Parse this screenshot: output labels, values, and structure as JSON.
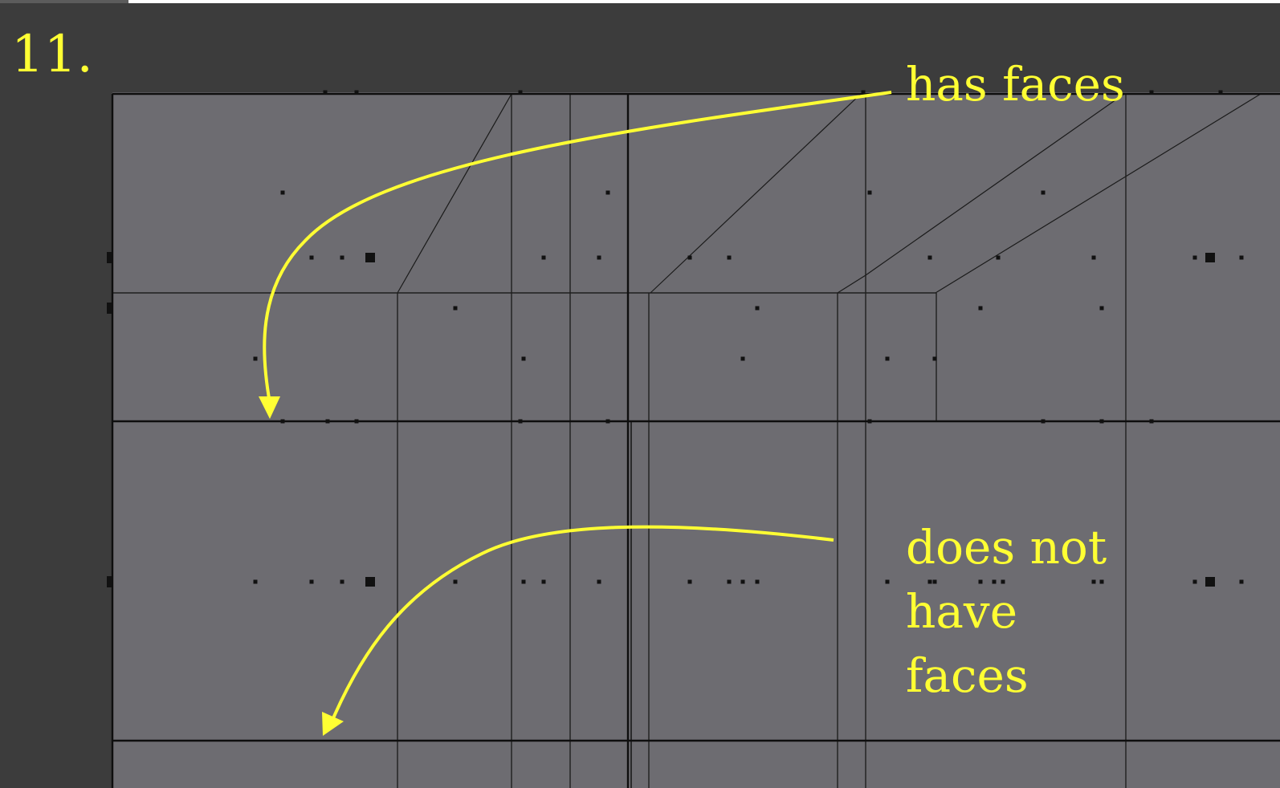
{
  "step_number": "11.",
  "annotations": {
    "has_faces": "has faces",
    "does_not_have_faces": "does not\nhave\nfaces"
  },
  "colors": {
    "viewport_background": "#3c3c3c",
    "mesh_face": "#6d6c71",
    "mesh_edge": "#111111",
    "annotation": "#ffff33"
  },
  "icons": {
    "arrow_has_faces": "curved-arrow-icon",
    "arrow_no_faces": "curved-arrow-icon",
    "vertex": "vertex-dot-icon"
  }
}
